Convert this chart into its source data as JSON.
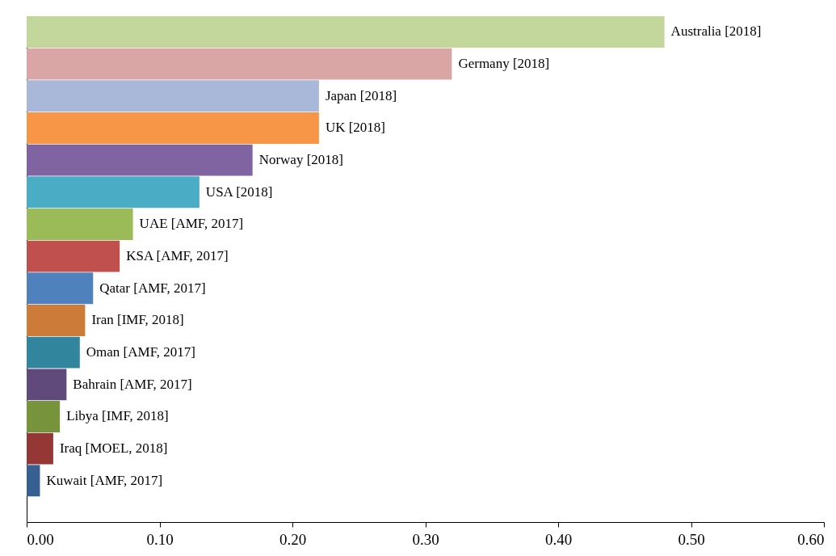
{
  "chart_data": {
    "type": "bar",
    "orientation": "horizontal",
    "categories": [
      "Australia [2018]",
      "Germany [2018]",
      "Japan [2018]",
      "UK [2018]",
      "Norway [2018]",
      "USA [2018]",
      "UAE [AMF, 2017]",
      "KSA [AMF, 2017]",
      "Qatar [AMF, 2017]",
      "Iran [IMF, 2018]",
      "Oman [AMF, 2017]",
      "Bahrain [AMF, 2017]",
      "Libya [IMF, 2018]",
      "Iraq [MOEL, 2018]",
      "Kuwait [AMF, 2017]"
    ],
    "values": [
      0.48,
      0.32,
      0.22,
      0.22,
      0.17,
      0.13,
      0.08,
      0.07,
      0.05,
      0.044,
      0.04,
      0.03,
      0.025,
      0.02,
      0.01
    ],
    "colors": [
      "#c3d69b",
      "#d9a5a5",
      "#a9b8d8",
      "#f79646",
      "#8064a2",
      "#4bacc6",
      "#9bbb59",
      "#c0504d",
      "#4f81bd",
      "#cc7b38",
      "#31859c",
      "#604a7b",
      "#77933c",
      "#953735",
      "#376092"
    ],
    "xlim": [
      0,
      0.6
    ],
    "xticks": [
      {
        "value": 0,
        "label": "0.00"
      },
      {
        "value": 0.1,
        "label": "0.10"
      },
      {
        "value": 0.2,
        "label": "0.20"
      },
      {
        "value": 0.3,
        "label": "0.30"
      },
      {
        "value": 0.4,
        "label": "0.40"
      },
      {
        "value": 0.5,
        "label": "0.50"
      },
      {
        "value": 0.6,
        "label": "0.60"
      }
    ],
    "tick_labels": "x",
    "grid": false
  }
}
